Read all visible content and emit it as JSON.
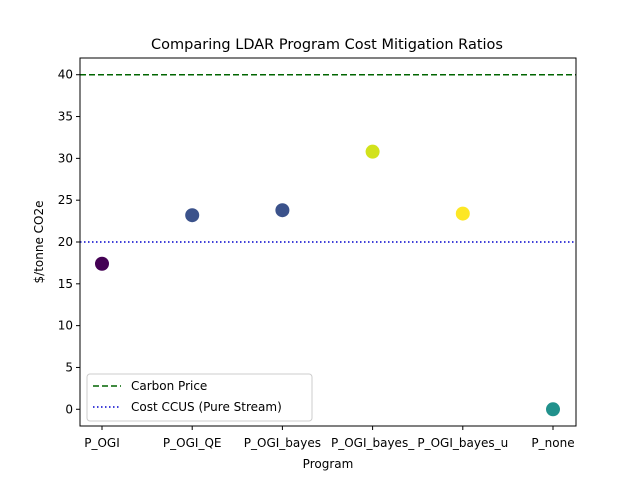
{
  "chart_data": {
    "type": "scatter",
    "title": "Comparing LDAR Program Cost Mitigation Ratios",
    "xlabel": "Program",
    "ylabel": "$/tonne CO2e",
    "categories": [
      "P_OGI",
      "P_OGI_QE",
      "P_OGI_bayes",
      "P_OGI_bayes_",
      "P_OGI_bayes_u",
      "P_none"
    ],
    "values": [
      17.4,
      23.2,
      23.8,
      30.8,
      23.4,
      0.0
    ],
    "point_colors": [
      "#440154",
      "#3b528b",
      "#3b528b",
      "#d2e21b",
      "#fde725",
      "#21918c"
    ],
    "ylim": [
      -2,
      42
    ],
    "yticks": [
      0,
      5,
      10,
      15,
      20,
      25,
      30,
      35,
      40
    ],
    "grid": false,
    "reference_lines": [
      {
        "name": "Carbon Price",
        "y": 40,
        "color": "#006400",
        "style": "dashed"
      },
      {
        "name": "Cost CCUS (Pure Stream)",
        "y": 20,
        "color": "#0000cc",
        "style": "dotted"
      }
    ],
    "legend_position": "lower-left"
  }
}
